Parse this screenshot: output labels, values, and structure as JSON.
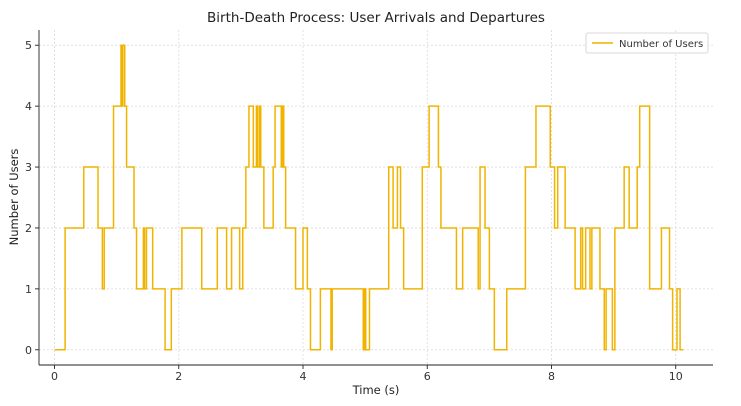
{
  "chart_data": {
    "type": "line",
    "step": "post",
    "title": "Birth-Death Process: User Arrivals and Departures",
    "xlabel": "Time (s)",
    "ylabel": "Number of Users",
    "xlim": [
      -0.25,
      10.6
    ],
    "ylim": [
      -0.25,
      5.25
    ],
    "xticks": [
      0,
      2,
      4,
      6,
      8,
      10
    ],
    "yticks": [
      0,
      1,
      2,
      3,
      4,
      5
    ],
    "grid": true,
    "legend": {
      "position": "top-right",
      "entries": [
        "Number of Users"
      ]
    },
    "color": "#f0b400",
    "series": [
      {
        "name": "Number of Users",
        "x": [
          0.0,
          0.17,
          0.47,
          0.7,
          0.77,
          0.8,
          0.95,
          1.07,
          1.08,
          1.1,
          1.13,
          1.16,
          1.28,
          1.32,
          1.43,
          1.45,
          1.48,
          1.58,
          1.78,
          1.88,
          2.05,
          2.37,
          2.62,
          2.77,
          2.85,
          2.98,
          3.03,
          3.08,
          3.13,
          3.2,
          3.25,
          3.27,
          3.3,
          3.32,
          3.37,
          3.52,
          3.55,
          3.65,
          3.67,
          3.69,
          3.72,
          3.88,
          4.0,
          4.07,
          4.12,
          4.28,
          4.45,
          4.47,
          4.97,
          4.99,
          5.01,
          5.07,
          5.38,
          5.45,
          5.52,
          5.57,
          5.62,
          5.92,
          6.03,
          6.18,
          6.22,
          6.47,
          6.57,
          6.82,
          6.85,
          6.93,
          7.0,
          7.08,
          7.28,
          7.58,
          7.75,
          7.98,
          8.05,
          8.1,
          8.22,
          8.38,
          8.47,
          8.5,
          8.55,
          8.62,
          8.65,
          8.78,
          8.85,
          8.88,
          8.98,
          9.02,
          9.17,
          9.25,
          9.38,
          9.42,
          9.58,
          9.77,
          9.9,
          9.95,
          10.02,
          10.07,
          10.12
        ],
        "y": [
          0,
          2,
          3,
          2,
          1,
          2,
          4,
          5,
          4,
          5,
          4,
          3,
          2,
          1,
          2,
          1,
          2,
          1,
          0,
          1,
          2,
          1,
          2,
          1,
          2,
          1,
          2,
          3,
          4,
          3,
          4,
          3,
          4,
          3,
          2,
          3,
          4,
          3,
          4,
          3,
          2,
          1,
          2,
          1,
          0,
          1,
          0,
          1,
          0,
          1,
          0,
          1,
          3,
          2,
          3,
          2,
          1,
          3,
          4,
          3,
          2,
          1,
          2,
          1,
          3,
          2,
          1,
          0,
          1,
          3,
          4,
          3,
          2,
          3,
          2,
          1,
          2,
          1,
          2,
          1,
          2,
          1,
          0,
          1,
          0,
          2,
          3,
          2,
          3,
          4,
          1,
          2,
          1,
          0,
          1,
          0,
          0
        ]
      }
    ]
  }
}
